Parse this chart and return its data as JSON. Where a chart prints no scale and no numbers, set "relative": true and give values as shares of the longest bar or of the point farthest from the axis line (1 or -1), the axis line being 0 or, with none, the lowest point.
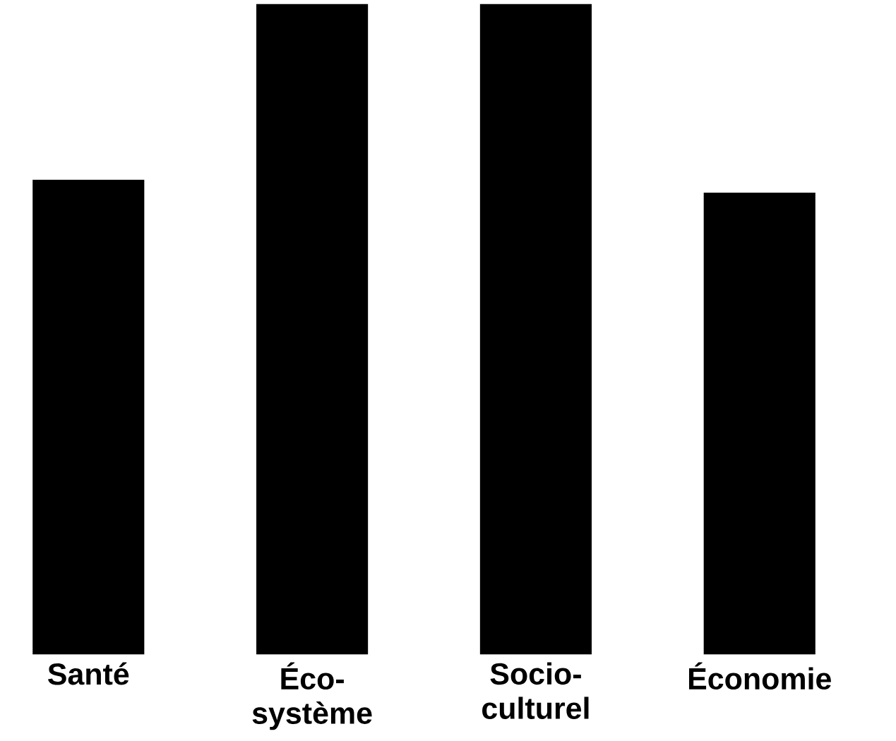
{
  "chart_data": {
    "type": "bar",
    "relative": true,
    "categories": [
      "Santé",
      "Éco-système",
      "Socio-culturel",
      "Économie"
    ],
    "values": [
      0.73,
      1,
      1,
      0.71
    ],
    "color": "#000000"
  }
}
